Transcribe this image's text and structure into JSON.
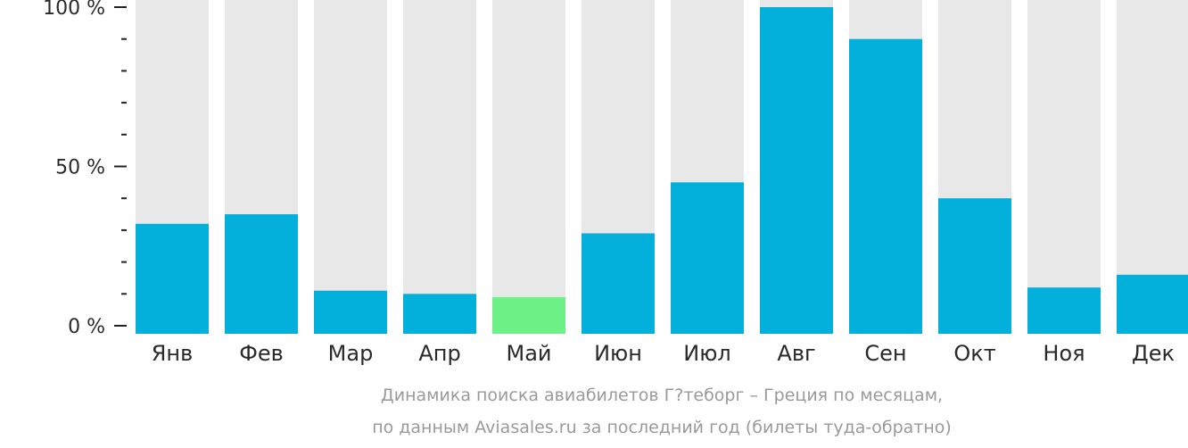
{
  "chart_data": {
    "type": "bar",
    "categories": [
      "Янв",
      "Фев",
      "Мар",
      "Апр",
      "Май",
      "Июн",
      "Июл",
      "Авг",
      "Сен",
      "Окт",
      "Ноя",
      "Дек"
    ],
    "values": [
      32,
      35,
      11,
      10,
      9,
      29,
      45,
      100,
      90,
      40,
      12,
      16
    ],
    "highlight_index": 4,
    "ylim": [
      0,
      100
    ],
    "yticks": [
      {
        "value": 100,
        "label": "100 %"
      },
      {
        "value": 50,
        "label": "50 %"
      },
      {
        "value": 0,
        "label": "0 %"
      }
    ],
    "minor_tick_step": 10,
    "grid": false,
    "colors": {
      "bar": "#03b0dc",
      "highlight": "#6df187",
      "background_bar": "#e8e8e8",
      "axis": "#222222",
      "caption": "#9a9a9a"
    }
  },
  "caption": {
    "line1": "Динамика поиска авиабилетов Г?теборг – Греция по месяцам,",
    "line2": "по данным Aviasales.ru за последний год (билеты туда-обратно)"
  }
}
